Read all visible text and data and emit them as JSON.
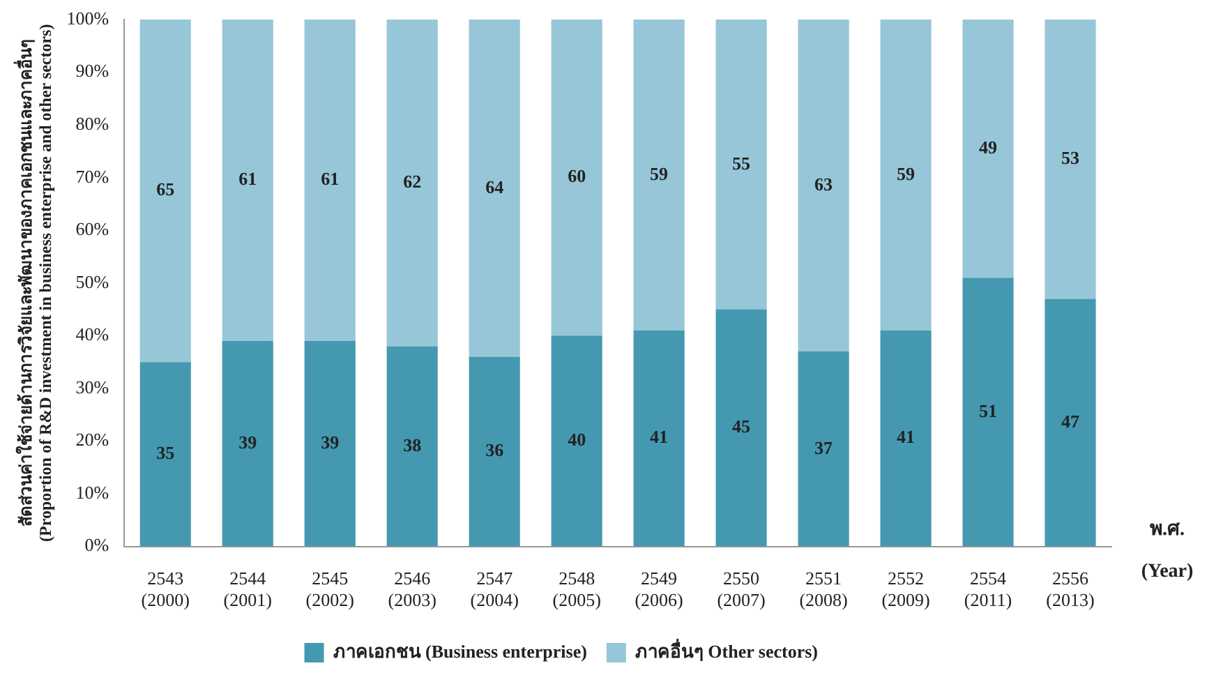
{
  "chart_data": {
    "type": "bar",
    "stacked": true,
    "ylabel": "สัดส่วนค่าใช้จ่ายด้านการวิจัยและพัฒนาของภาคเอกชนและภาคอื่นๆ\n(Proportion of R&D investment in business enterprise and other sectors)",
    "xlabel": "พ.ศ.\n(Year)",
    "categories": [
      "2543\n(2000)",
      "2544\n(2001)",
      "2545\n(2002)",
      "2546\n(2003)",
      "2547\n(2004)",
      "2548\n(2005)",
      "2549\n(2006)",
      "2550\n(2007)",
      "2551\n(2008)",
      "2552\n(2009)",
      "2554\n(2011)",
      "2556\n(2013)"
    ],
    "series": [
      {
        "name": "ภาคเอกชน (Business enterprise)",
        "color": "#4499b0",
        "values": [
          35,
          39,
          39,
          38,
          36,
          40,
          41,
          45,
          37,
          41,
          51,
          47
        ]
      },
      {
        "name": "ภาคอื่นๆ Other sectors)",
        "color": "#97c6d8",
        "values": [
          65,
          61,
          61,
          62,
          64,
          60,
          59,
          55,
          63,
          59,
          49,
          53
        ]
      }
    ],
    "ylim": [
      0,
      100
    ],
    "yticks": [
      {
        "value": 0,
        "label": "0%"
      },
      {
        "value": 10,
        "label": "10%"
      },
      {
        "value": 20,
        "label": "20%"
      },
      {
        "value": 30,
        "label": "30%"
      },
      {
        "value": 40,
        "label": "40%"
      },
      {
        "value": 50,
        "label": "50%"
      },
      {
        "value": 60,
        "label": "60%"
      },
      {
        "value": 70,
        "label": "70%"
      },
      {
        "value": 80,
        "label": "80%"
      },
      {
        "value": 90,
        "label": "90%"
      },
      {
        "value": 100,
        "label": "100%"
      }
    ],
    "grid": false,
    "legend": "bottom",
    "data_labels": true
  }
}
